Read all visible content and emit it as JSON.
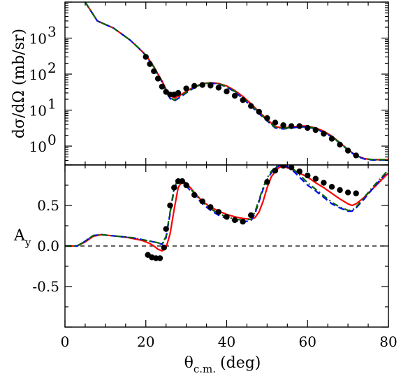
{
  "chart_data": [
    {
      "type": "line",
      "panel": "top",
      "yscale": "log",
      "ylabel": "dσ/dΩ (mb/sr)",
      "xlim": [
        0,
        80
      ],
      "ylim": [
        0.3,
        10000
      ],
      "ytick_labels": [
        {
          "value": 1,
          "base": "10",
          "exp": "0"
        },
        {
          "value": 10,
          "base": "10",
          "exp": "1"
        },
        {
          "value": 100,
          "base": "10",
          "exp": "2"
        },
        {
          "value": 1000,
          "base": "10",
          "exp": "3"
        }
      ],
      "x": [
        5,
        8,
        12,
        16,
        18,
        20,
        22,
        23,
        24,
        25,
        26,
        27,
        28,
        30,
        32,
        34,
        36,
        38,
        40,
        42,
        44,
        46,
        48,
        50,
        52,
        54,
        56,
        58,
        60,
        62,
        64,
        66,
        68,
        70,
        72,
        74,
        76,
        78,
        80
      ],
      "series": [
        {
          "style": "solid",
          "color": "#ff0000",
          "values": [
            10000,
            3000,
            1900,
            900,
            560,
            340,
            160,
            100,
            65,
            38,
            25,
            22,
            24,
            33,
            45,
            54,
            58,
            55,
            47,
            35,
            24,
            15,
            9,
            5.5,
            3.5,
            3.2,
            3.4,
            3.6,
            3.6,
            3.2,
            2.6,
            1.9,
            1.25,
            0.8,
            0.55,
            0.45,
            0.42,
            0.42,
            0.42
          ]
        },
        {
          "style": "dashed",
          "color": "#0000ff",
          "values": [
            10000,
            3000,
            1900,
            900,
            560,
            330,
            150,
            95,
            60,
            35,
            21,
            18,
            21,
            30,
            42,
            52,
            56,
            53,
            44,
            32,
            21,
            13,
            8,
            5,
            3.2,
            3.0,
            3.2,
            3.4,
            3.4,
            3.0,
            2.4,
            1.8,
            1.2,
            0.78,
            0.53,
            0.44,
            0.41,
            0.41,
            0.41
          ]
        },
        {
          "style": "dash-dot",
          "color": "#006400",
          "values": [
            10000,
            3000,
            1900,
            900,
            560,
            335,
            155,
            98,
            62,
            36,
            22,
            19,
            22,
            31,
            43,
            53,
            57,
            54,
            45,
            33,
            22,
            14,
            8.5,
            5.2,
            3.3,
            3.1,
            3.3,
            3.5,
            3.5,
            3.1,
            2.5,
            1.85,
            1.22,
            0.79,
            0.54,
            0.45,
            0.42,
            0.42,
            0.42
          ]
        }
      ],
      "points": {
        "marker": "filled-circle",
        "x": [
          20,
          21,
          22,
          23,
          24,
          25,
          26,
          27,
          28,
          30,
          32,
          34,
          36,
          38,
          40,
          42,
          44,
          46,
          48,
          50,
          52,
          54,
          56,
          58,
          60,
          62,
          64,
          66,
          68,
          70,
          72
        ],
        "y": [
          300,
          190,
          120,
          75,
          45,
          32,
          27,
          27,
          30,
          40,
          47,
          50,
          48,
          42,
          33,
          25,
          19,
          13,
          9,
          6,
          4.5,
          3.8,
          3.6,
          3.6,
          3.2,
          2.8,
          2.2,
          1.6,
          1.1,
          0.75,
          0.55
        ]
      }
    },
    {
      "type": "line",
      "panel": "bottom",
      "ylabel_main": "A",
      "ylabel_sub": "y",
      "xlabel_main": "θ",
      "xlabel_sub": "c.m.",
      "xlabel_unit": "(deg)",
      "xlim": [
        0,
        80
      ],
      "ylim": [
        -1,
        1
      ],
      "xticks": [
        0,
        20,
        40,
        60,
        80
      ],
      "yticks": [
        -0.5,
        0.0,
        0.5
      ],
      "ytick_labels": [
        "-0.5",
        "0.0",
        "0.5"
      ],
      "reference_line": {
        "y": 0,
        "style": "dashed"
      },
      "x": [
        0,
        3,
        5,
        7,
        9,
        11,
        13,
        15,
        17,
        19,
        21,
        22,
        23,
        24,
        25,
        26,
        27,
        28,
        29,
        30,
        32,
        34,
        36,
        38,
        40,
        42,
        44,
        46,
        47,
        48,
        49,
        50,
        51,
        52,
        53,
        54,
        56,
        58,
        60,
        62,
        64,
        66,
        68,
        70,
        71,
        72,
        74,
        76,
        78,
        80
      ],
      "series": [
        {
          "style": "solid",
          "color": "#ff0000",
          "values": [
            0,
            0,
            0.05,
            0.12,
            0.14,
            0.13,
            0.12,
            0.11,
            0.09,
            0.07,
            0.03,
            0,
            -0.04,
            -0.06,
            -0.02,
            0.15,
            0.45,
            0.72,
            0.8,
            0.78,
            0.66,
            0.55,
            0.48,
            0.43,
            0.39,
            0.36,
            0.34,
            0.33,
            0.35,
            0.42,
            0.55,
            0.72,
            0.85,
            0.92,
            0.97,
            0.98,
            0.95,
            0.9,
            0.85,
            0.78,
            0.72,
            0.65,
            0.58,
            0.52,
            0.5,
            0.52,
            0.6,
            0.7,
            0.8,
            0.9
          ]
        },
        {
          "style": "dashed",
          "color": "#0000ff",
          "values": [
            0,
            0,
            0.06,
            0.13,
            0.14,
            0.13,
            0.12,
            0.11,
            0.1,
            0.08,
            0.06,
            0.05,
            0.04,
            0.02,
            0.1,
            0.4,
            0.7,
            0.8,
            0.78,
            0.74,
            0.63,
            0.52,
            0.44,
            0.38,
            0.34,
            0.31,
            0.3,
            0.31,
            0.4,
            0.55,
            0.7,
            0.82,
            0.9,
            0.96,
            0.99,
            1.0,
            0.95,
            0.85,
            0.75,
            0.68,
            0.6,
            0.52,
            0.47,
            0.43,
            0.43,
            0.47,
            0.58,
            0.7,
            0.82,
            0.93
          ]
        },
        {
          "style": "dash-dot",
          "color": "#006400",
          "values": [
            0,
            0,
            0.06,
            0.13,
            0.14,
            0.13,
            0.12,
            0.11,
            0.1,
            0.08,
            0.06,
            0.05,
            0.04,
            0.02,
            0.12,
            0.42,
            0.72,
            0.82,
            0.8,
            0.76,
            0.65,
            0.54,
            0.46,
            0.4,
            0.36,
            0.33,
            0.32,
            0.33,
            0.42,
            0.57,
            0.72,
            0.84,
            0.92,
            0.97,
            1.0,
            1.0,
            0.97,
            0.88,
            0.78,
            0.7,
            0.62,
            0.54,
            0.48,
            0.44,
            0.44,
            0.48,
            0.6,
            0.72,
            0.83,
            0.94
          ]
        }
      ],
      "points": {
        "marker": "filled-circle",
        "x": [
          20.5,
          21.5,
          22.5,
          23.5,
          24.5,
          25,
          26,
          27,
          28,
          29,
          30,
          32,
          34,
          36,
          38,
          40,
          42,
          44,
          46,
          50,
          52,
          54,
          56,
          58,
          60,
          62,
          64,
          66,
          68,
          70,
          72
        ],
        "y": [
          -0.11,
          -0.14,
          -0.15,
          -0.15,
          -0.02,
          0.21,
          0.5,
          0.72,
          0.8,
          0.8,
          0.75,
          0.63,
          0.55,
          0.48,
          0.42,
          0.36,
          0.32,
          0.3,
          0.38,
          0.79,
          0.93,
          0.99,
          0.97,
          0.92,
          0.87,
          0.83,
          0.78,
          0.73,
          0.69,
          0.66,
          0.65
        ]
      }
    }
  ]
}
